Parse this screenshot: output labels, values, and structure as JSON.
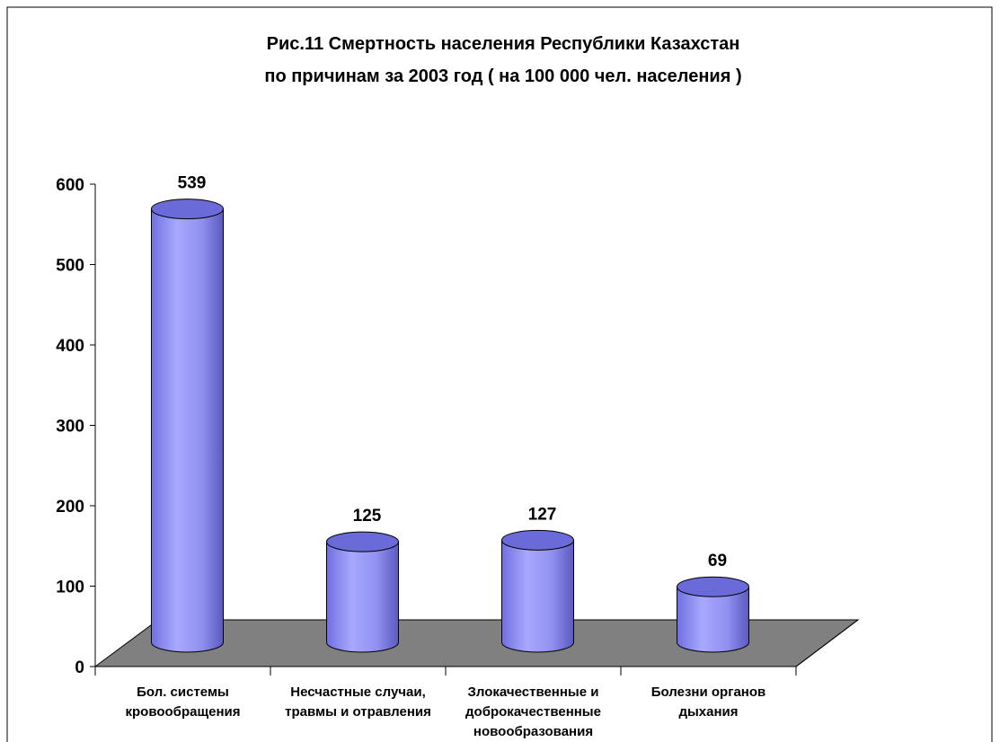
{
  "chart_data": {
    "type": "cylinder",
    "title": [
      "Рис.11 Смертность населения  Республики  Казахстан",
      "по причинам  за 2003 год ( на 100 000 чел. населения )"
    ],
    "categories": [
      [
        "Бол. системы",
        "кровообращения"
      ],
      [
        "Несчастные случаи,",
        "травмы и отравления"
      ],
      [
        "Злокачественные и",
        "доброкачественные",
        "новообразования"
      ],
      [
        "Болезни органов",
        "дыхания"
      ]
    ],
    "values": [
      539,
      125,
      127,
      69
    ],
    "color": "#9999ff",
    "ylim": [
      0,
      600
    ],
    "yticks": [
      0,
      100,
      200,
      300,
      400,
      500,
      600
    ]
  }
}
